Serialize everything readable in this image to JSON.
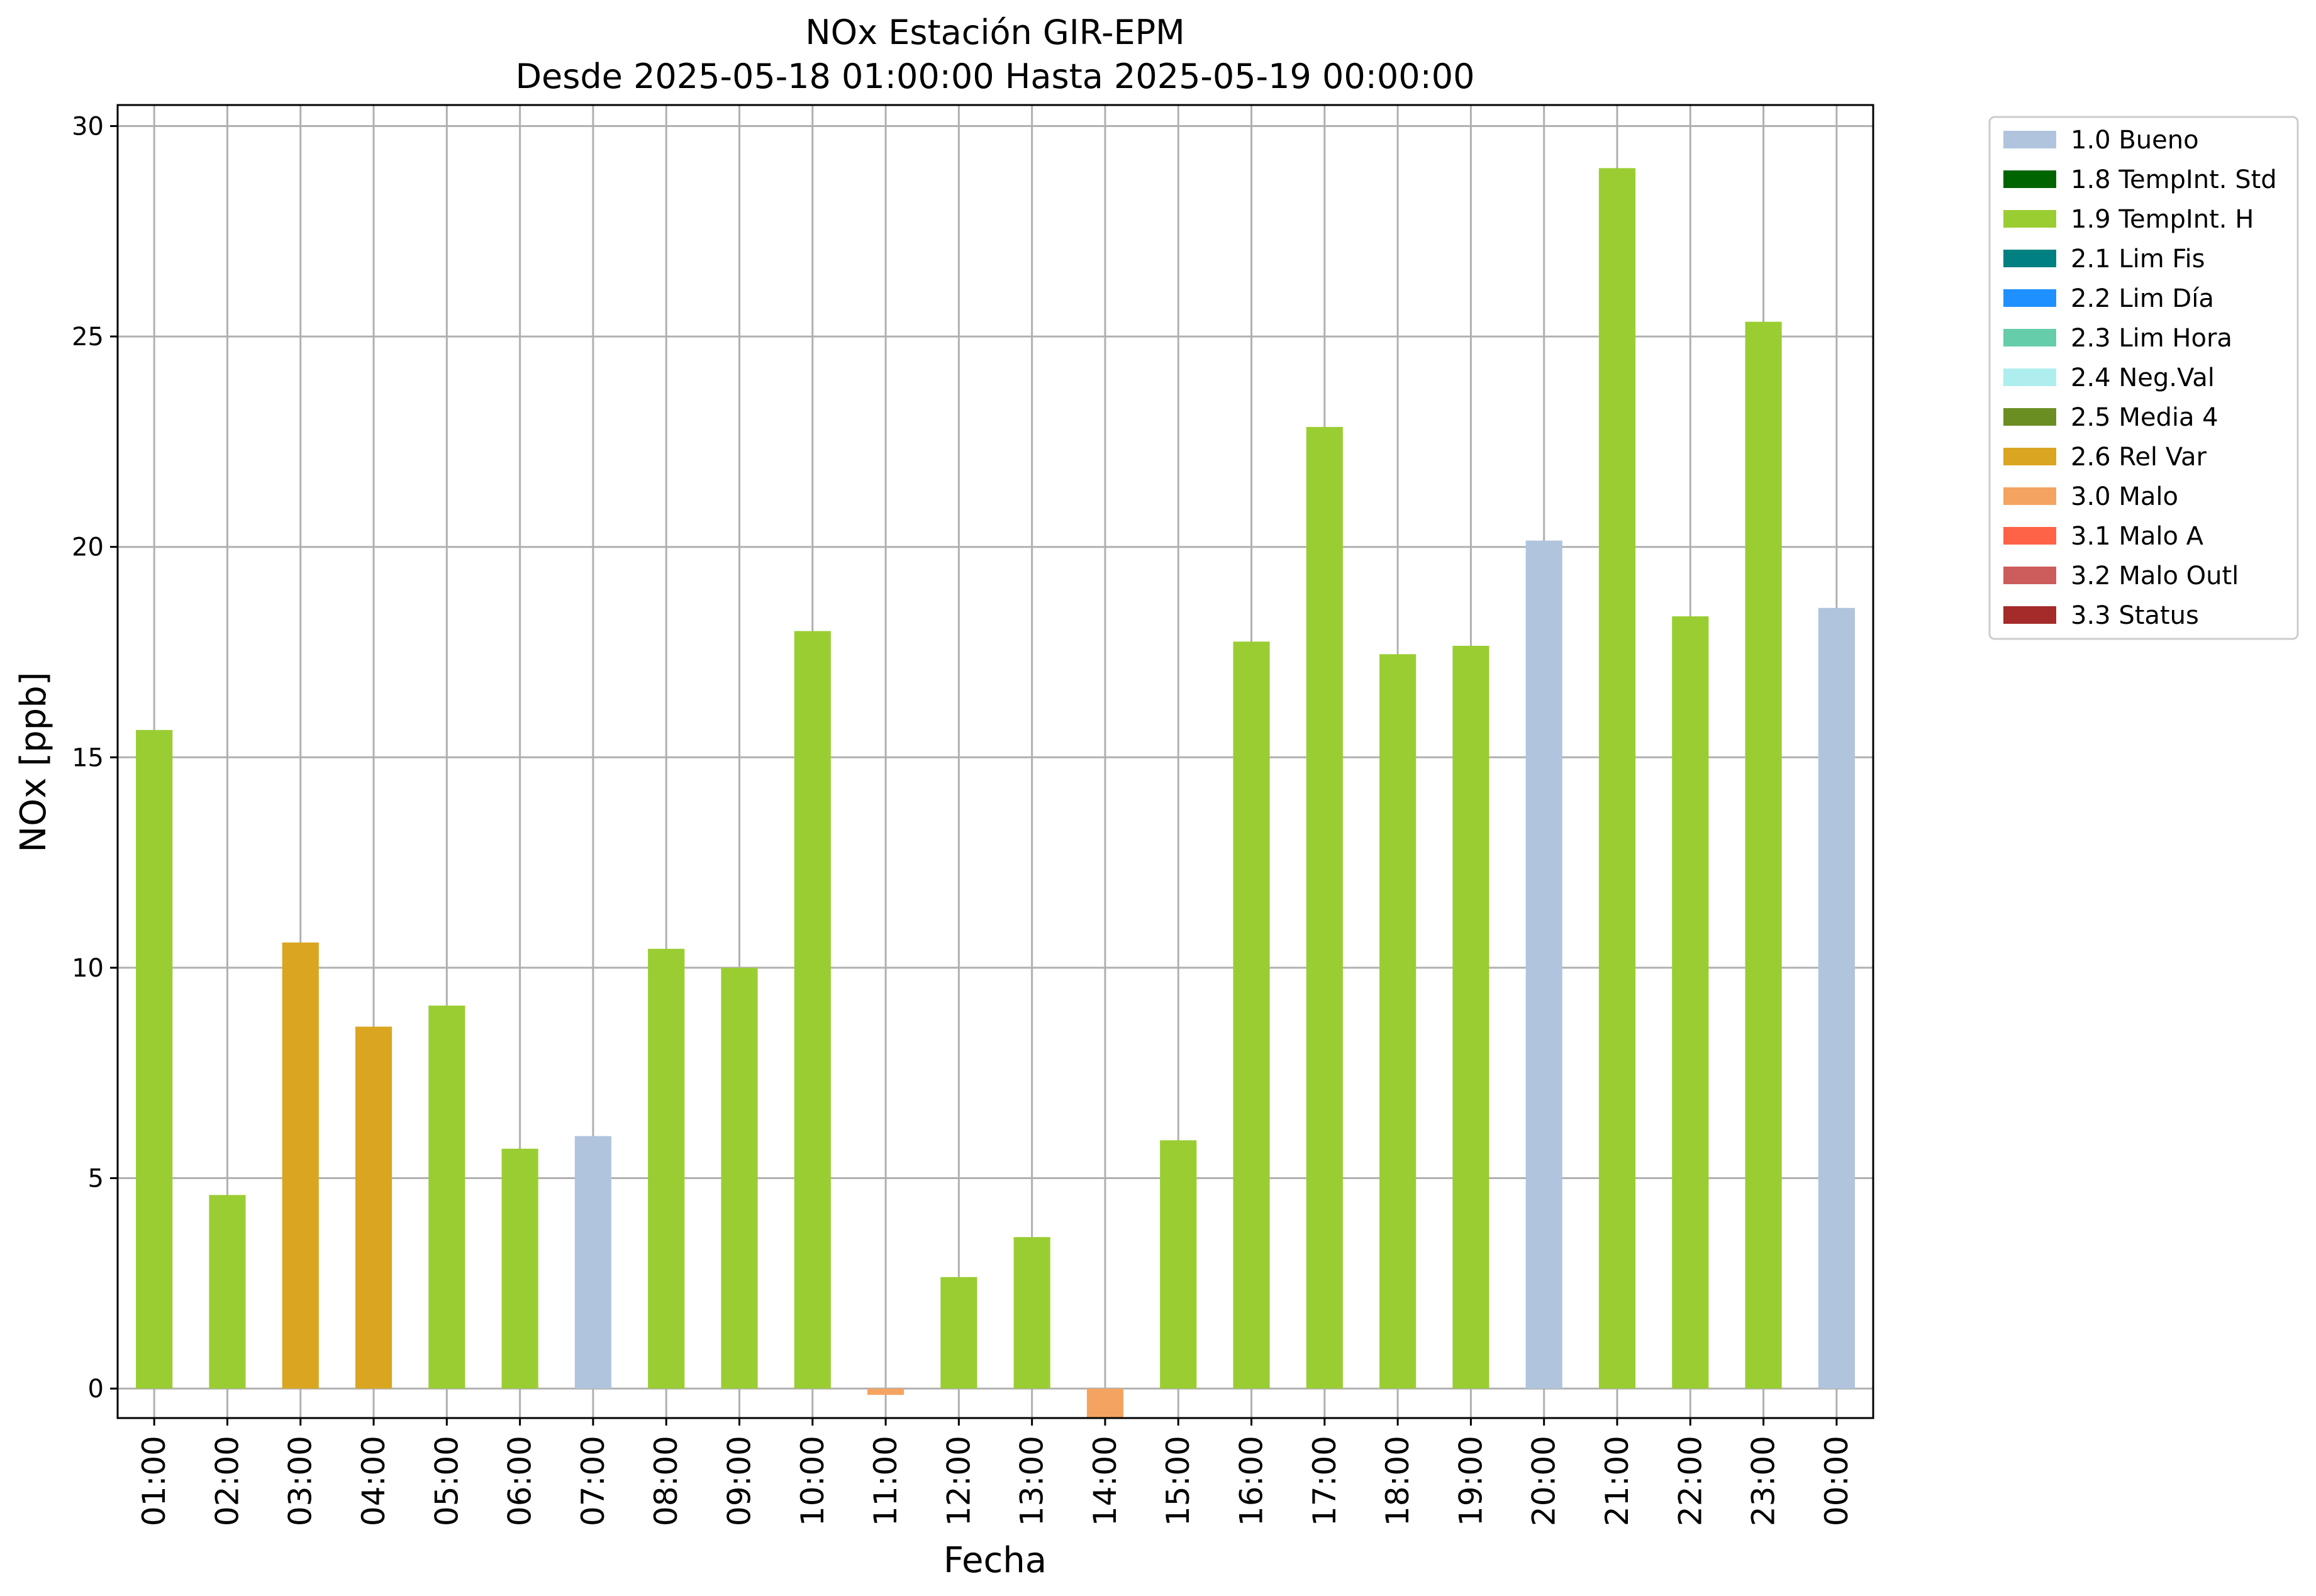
{
  "chart_data": {
    "type": "bar",
    "title": "NOx Estación GIR-EPM",
    "subtitle": "Desde 2025-05-18 01:00:00 Hasta 2025-05-19 00:00:00",
    "xlabel": "Fecha",
    "ylabel": "NOx [ppb]",
    "ylim": [
      -0.7,
      30.5
    ],
    "yticks": [
      0,
      5,
      10,
      15,
      20,
      25,
      30
    ],
    "grid": true,
    "legend_position": "outside-right-top",
    "categories": [
      "01:00",
      "02:00",
      "03:00",
      "04:00",
      "05:00",
      "06:00",
      "07:00",
      "08:00",
      "09:00",
      "10:00",
      "11:00",
      "12:00",
      "13:00",
      "14:00",
      "15:00",
      "16:00",
      "17:00",
      "18:00",
      "19:00",
      "20:00",
      "21:00",
      "22:00",
      "23:00",
      "00:00"
    ],
    "values": [
      15.65,
      4.6,
      10.6,
      8.6,
      9.1,
      5.7,
      6.0,
      10.45,
      10.0,
      18.0,
      -0.15,
      2.65,
      3.6,
      -0.7,
      5.9,
      17.75,
      22.85,
      17.45,
      17.65,
      20.15,
      29.0,
      18.35,
      25.35,
      18.55
    ],
    "flags": [
      "1.9 TempInt. H",
      "1.9 TempInt. H",
      "2.6 Rel Var",
      "2.6 Rel Var",
      "1.9 TempInt. H",
      "1.9 TempInt. H",
      "1.0 Bueno",
      "1.9 TempInt. H",
      "1.9 TempInt. H",
      "1.9 TempInt. H",
      "3.0 Malo",
      "1.9 TempInt. H",
      "1.9 TempInt. H",
      "3.0 Malo",
      "1.9 TempInt. H",
      "1.9 TempInt. H",
      "1.9 TempInt. H",
      "1.9 TempInt. H",
      "1.9 TempInt. H",
      "1.0 Bueno",
      "1.9 TempInt. H",
      "1.9 TempInt. H",
      "1.9 TempInt. H",
      "1.0 Bueno"
    ],
    "legend": [
      {
        "label": "1.0 Bueno",
        "color": "#b0c4de"
      },
      {
        "label": "1.8 TempInt. Std",
        "color": "#006400"
      },
      {
        "label": "1.9 TempInt. H",
        "color": "#9acd32"
      },
      {
        "label": "2.1 Lim Fis",
        "color": "#008080"
      },
      {
        "label": "2.2 Lim Día",
        "color": "#1e90ff"
      },
      {
        "label": "2.3 Lim Hora",
        "color": "#66cdaa"
      },
      {
        "label": "2.4 Neg.Val",
        "color": "#afeeee"
      },
      {
        "label": "2.5 Media 4",
        "color": "#6b8e23"
      },
      {
        "label": "2.6 Rel Var",
        "color": "#daa520"
      },
      {
        "label": "3.0 Malo",
        "color": "#f4a460"
      },
      {
        "label": "3.1 Malo A",
        "color": "#ff6347"
      },
      {
        "label": "3.2 Malo Outl",
        "color": "#cd5c5c"
      },
      {
        "label": "3.3 Status",
        "color": "#a52a2a"
      }
    ]
  }
}
